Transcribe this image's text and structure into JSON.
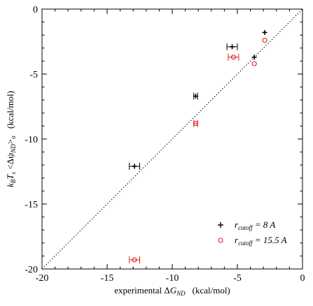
{
  "chart_data": {
    "type": "scatter",
    "title": "",
    "xlabel": {
      "prefix": "experimental Δ",
      "main": "G",
      "sub": "ND",
      "unit": "(kcal/mol)"
    },
    "ylabel": {
      "k": "k",
      "kSub": "B",
      "t": "T",
      "tSub": "s",
      "open": " <Δψ",
      "psiSub": "ND",
      "close": ">",
      "sigma": "σ",
      "unit": "(kcal/mol)"
    },
    "xlim": [
      -20,
      0
    ],
    "ylim": [
      -20,
      0
    ],
    "xticks": [
      -20,
      -15,
      -10,
      -5,
      0
    ],
    "yticks": [
      -20,
      -15,
      -10,
      -5,
      0
    ],
    "diagonal": {
      "from": [
        -20,
        -20
      ],
      "to": [
        0,
        0
      ],
      "style": "dotted"
    },
    "legend": {
      "position": "bottom-right"
    },
    "series": [
      {
        "name": {
          "r": "r",
          "sub": "cutoff",
          "rest": " = 8 A"
        },
        "marker": "plus",
        "color": "#000000",
        "points": [
          {
            "x": -2.9,
            "y": -1.8,
            "xerr": 0
          },
          {
            "x": -5.4,
            "y": -2.9,
            "xerr": 0.4
          },
          {
            "x": -3.7,
            "y": -3.7,
            "xerr": 0
          },
          {
            "x": -8.2,
            "y": -6.7,
            "xerr": 0.15
          },
          {
            "x": -12.9,
            "y": -12.1,
            "xerr": 0.4
          }
        ]
      },
      {
        "name": {
          "r": "r",
          "sub": "cutoff",
          "rest": " = 15.5 A"
        },
        "marker": "circle",
        "color": "#e0201c",
        "points": [
          {
            "x": -2.9,
            "y": -2.4,
            "xerr": 0
          },
          {
            "x": -5.3,
            "y": -3.7,
            "xerr": 0.4
          },
          {
            "x": -3.7,
            "y": -4.2,
            "xerr": 0
          },
          {
            "x": -8.2,
            "y": -8.8,
            "xerr": 0.15
          },
          {
            "x": -12.9,
            "y": -19.3,
            "xerr": 0.4
          }
        ]
      }
    ]
  }
}
